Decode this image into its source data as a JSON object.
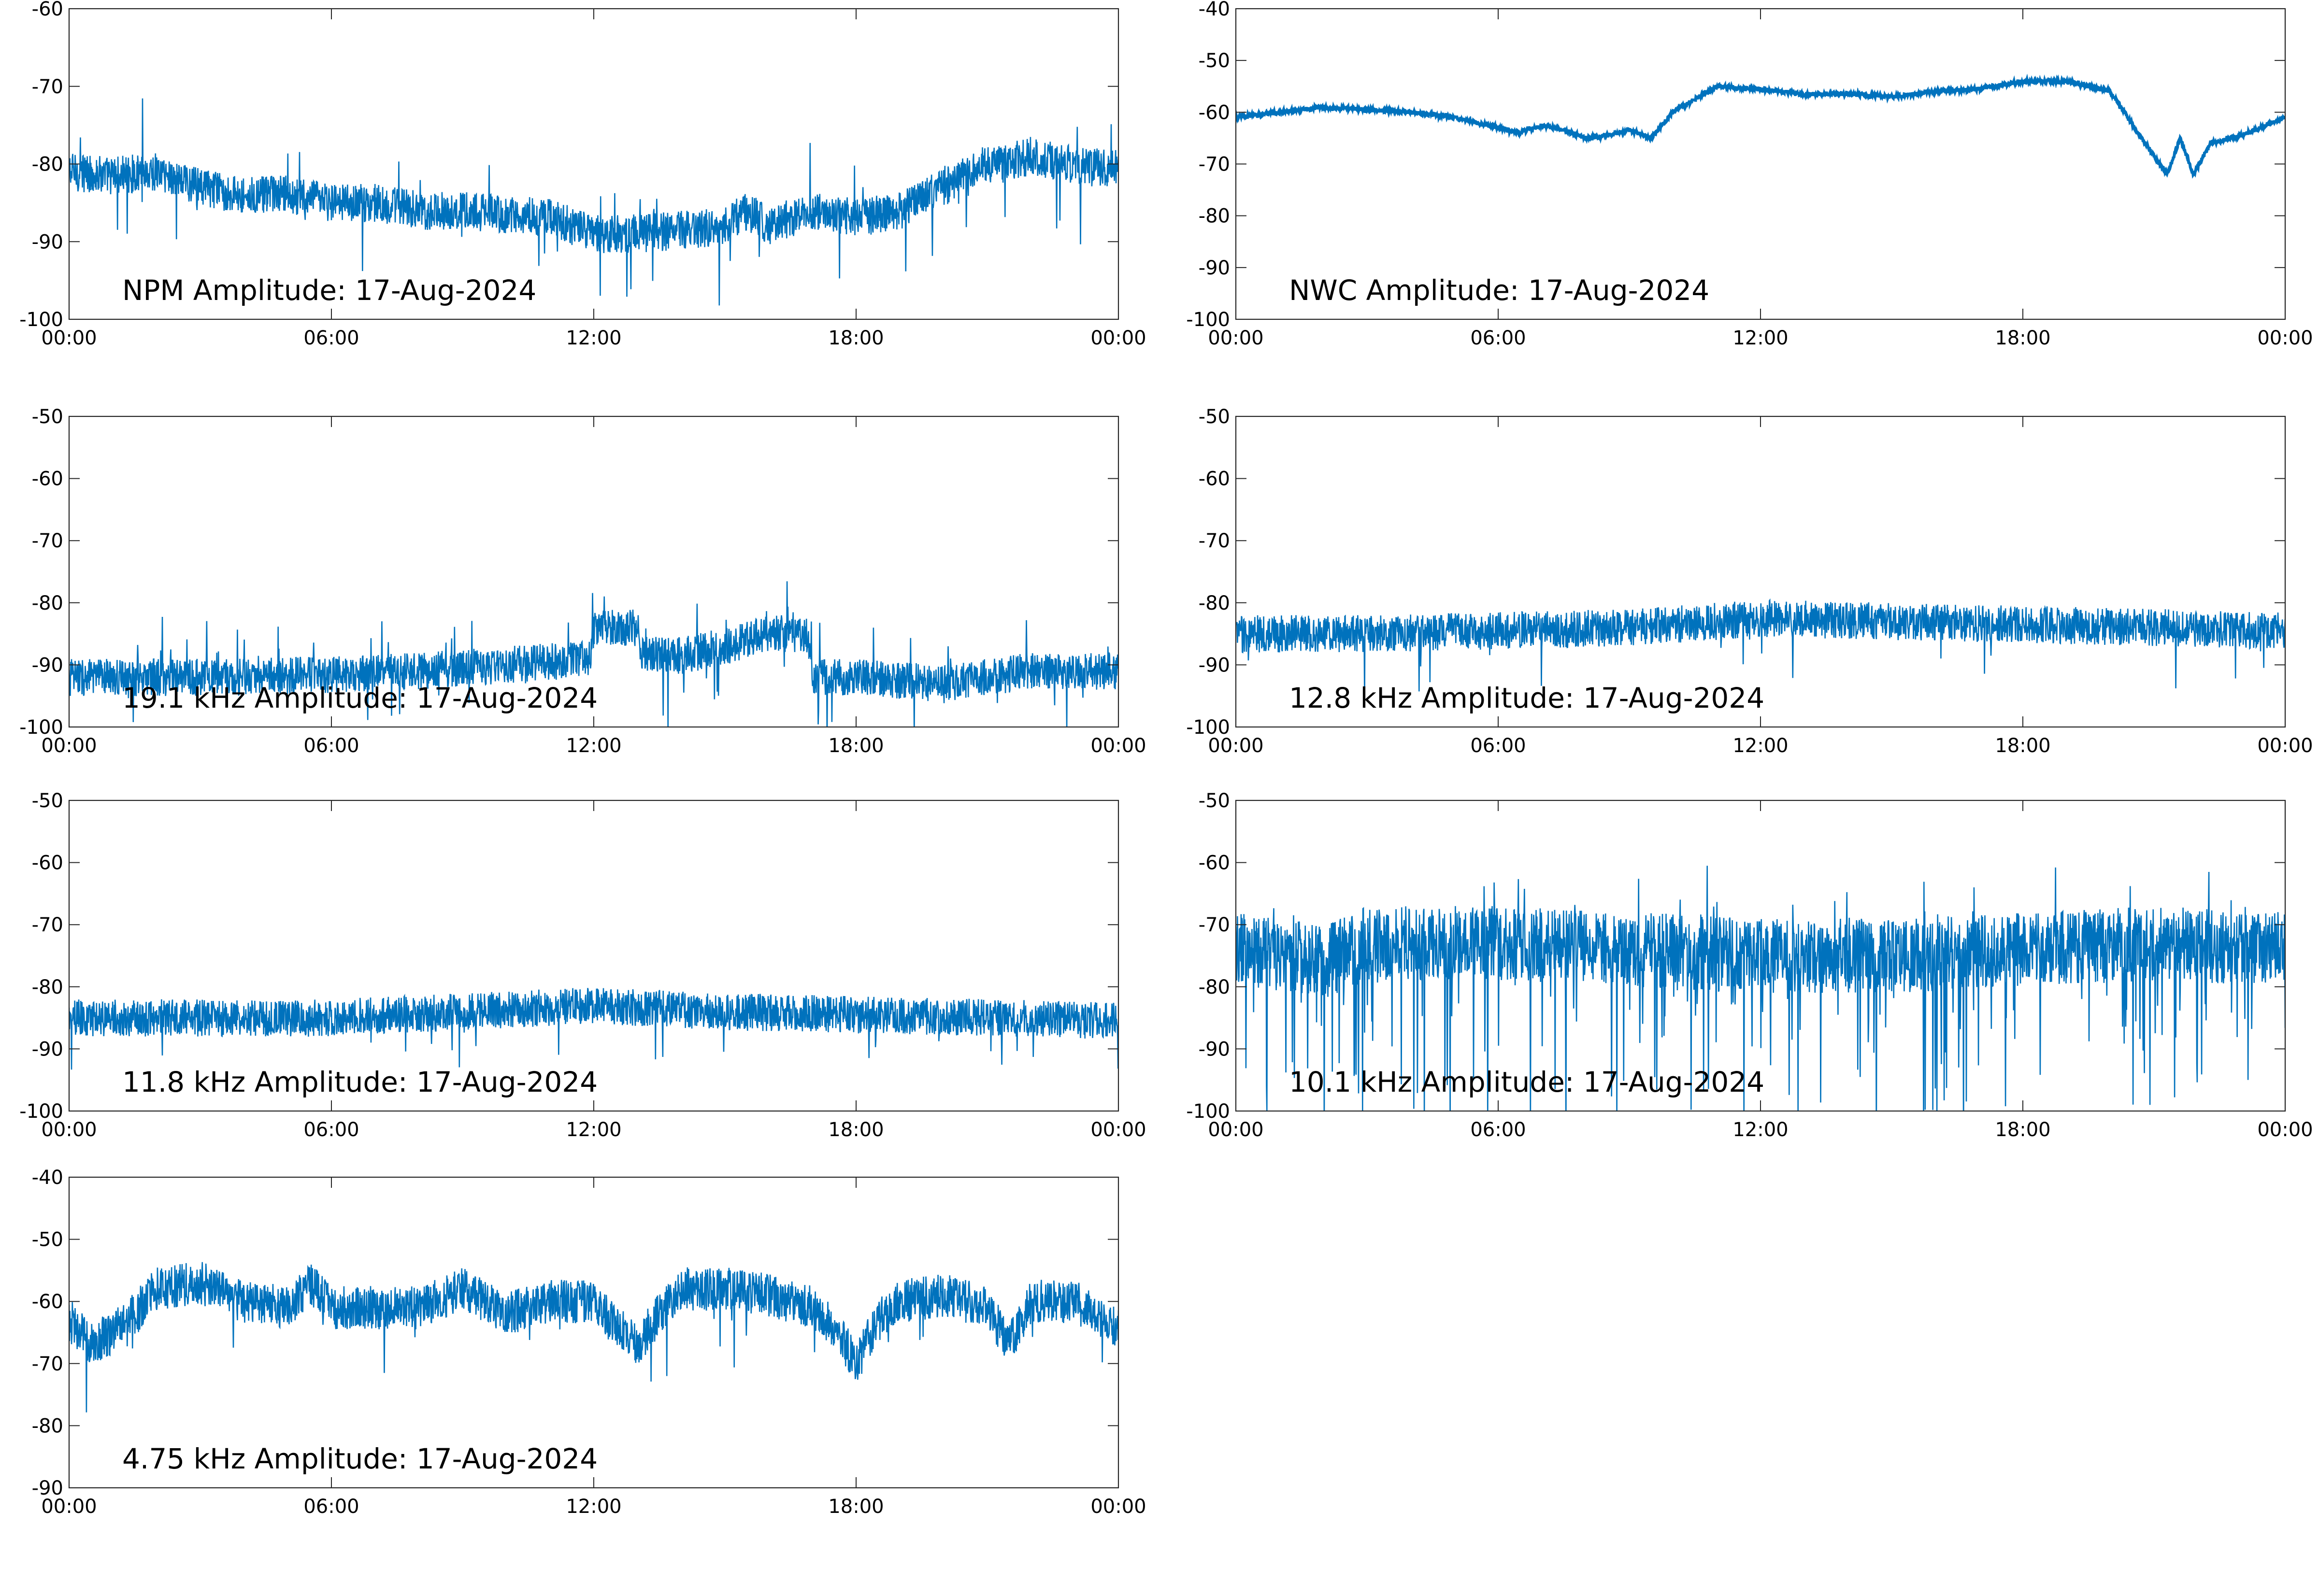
{
  "colors": {
    "line": "#0072bd",
    "axes": "#262626",
    "background": "#ffffff"
  },
  "chart_data": [
    {
      "type": "line",
      "title": "NPM Amplitude: 17-Aug-2024",
      "xlim": [
        "00:00",
        "24:00"
      ],
      "x_ticks": [
        "00:00",
        "06:00",
        "12:00",
        "18:00",
        "00:00"
      ],
      "ylim": [
        -100,
        -60
      ],
      "y_ticks": [
        "-60",
        "-70",
        "-80",
        "-90",
        "-100"
      ],
      "noise": {
        "amplitude": 2.5,
        "spikes": "up_down"
      },
      "series": [
        {
          "x": [
            0,
            1,
            2,
            3,
            4,
            5,
            6,
            7,
            8,
            9,
            10,
            11,
            12,
            13,
            14,
            15,
            15.5,
            16,
            16.5,
            17,
            18,
            19,
            20,
            21,
            22,
            23,
            24
          ],
          "values": [
            -81,
            -81.5,
            -81,
            -83,
            -84,
            -84,
            -85,
            -85,
            -86,
            -86,
            -86.5,
            -87,
            -89,
            -89,
            -88.5,
            -88,
            -86,
            -88,
            -87,
            -86,
            -87,
            -86,
            -83,
            -80,
            -79,
            -80,
            -80.5
          ]
        }
      ]
    },
    {
      "type": "line",
      "title": "NWC Amplitude: 17-Aug-2024",
      "xlim": [
        "00:00",
        "24:00"
      ],
      "x_ticks": [
        "00:00",
        "06:00",
        "12:00",
        "18:00",
        "00:00"
      ],
      "ylim": [
        -100,
        -40
      ],
      "y_ticks": [
        "-40",
        "-50",
        "-60",
        "-70",
        "-80",
        "-90",
        "-100"
      ],
      "noise": {
        "amplitude": 0.4,
        "spikes": "none"
      },
      "series": [
        {
          "x": [
            0,
            1,
            2,
            3,
            4,
            5,
            6,
            6.5,
            7,
            7.5,
            8,
            8.5,
            9,
            9.5,
            10,
            11,
            12,
            13,
            14,
            15,
            16,
            17,
            18,
            19,
            20,
            20.8,
            21.3,
            21.6,
            21.9,
            22.3,
            23,
            24
          ],
          "values": [
            -61,
            -60,
            -59,
            -59.5,
            -60,
            -61,
            -63,
            -64,
            -62.5,
            -63.5,
            -65,
            -64.5,
            -63.5,
            -65,
            -60,
            -55,
            -55.5,
            -56.5,
            -56.5,
            -57,
            -56,
            -55.5,
            -54,
            -54,
            -56,
            -66,
            -72,
            -65,
            -72,
            -66,
            -64.5,
            -61
          ]
        }
      ]
    },
    {
      "type": "line",
      "title": "19.1 kHz Amplitude: 17-Aug-2024",
      "xlim": [
        "00:00",
        "24:00"
      ],
      "x_ticks": [
        "00:00",
        "06:00",
        "12:00",
        "18:00",
        "00:00"
      ],
      "ylim": [
        -100,
        -50
      ],
      "y_ticks": [
        "-50",
        "-60",
        "-70",
        "-80",
        "-90",
        "-100"
      ],
      "noise": {
        "amplitude": 3,
        "spikes": "up_down"
      },
      "series": [
        {
          "x": [
            0,
            2,
            4,
            6,
            8,
            10,
            11.9,
            12,
            13,
            13.1,
            14,
            15,
            16,
            16.9,
            17,
            18,
            20,
            22,
            24
          ],
          "values": [
            -92,
            -92,
            -92,
            -91.5,
            -91,
            -90,
            -89,
            -84,
            -84,
            -88,
            -88.5,
            -87,
            -85,
            -85,
            -92,
            -92,
            -93,
            -91,
            -91
          ]
        }
      ]
    },
    {
      "type": "line",
      "title": "12.8 kHz Amplitude: 17-Aug-2024",
      "xlim": [
        "00:00",
        "24:00"
      ],
      "x_ticks": [
        "00:00",
        "06:00",
        "12:00",
        "18:00",
        "00:00"
      ],
      "ylim": [
        -100,
        -50
      ],
      "y_ticks": [
        "-50",
        "-60",
        "-70",
        "-80",
        "-90",
        "-100"
      ],
      "noise": {
        "amplitude": 3,
        "spikes": "down"
      },
      "series": [
        {
          "x": [
            0,
            3,
            6,
            9,
            12,
            15,
            18,
            21,
            24
          ],
          "values": [
            -85,
            -85,
            -84.5,
            -84,
            -82.5,
            -83,
            -83.5,
            -84,
            -84.5
          ]
        }
      ]
    },
    {
      "type": "line",
      "title": "11.8 kHz Amplitude: 17-Aug-2024",
      "xlim": [
        "00:00",
        "24:00"
      ],
      "x_ticks": [
        "00:00",
        "06:00",
        "12:00",
        "18:00",
        "00:00"
      ],
      "ylim": [
        -100,
        -50
      ],
      "y_ticks": [
        "-50",
        "-60",
        "-70",
        "-80",
        "-90",
        "-100"
      ],
      "noise": {
        "amplitude": 3,
        "spikes": "down"
      },
      "series": [
        {
          "x": [
            0,
            3,
            6,
            9,
            12,
            15,
            18,
            21,
            24
          ],
          "values": [
            -85,
            -85,
            -85,
            -84,
            -83,
            -84,
            -84.5,
            -85,
            -85.5
          ]
        }
      ]
    },
    {
      "type": "line",
      "title": "10.1 kHz Amplitude: 17-Aug-2024",
      "xlim": [
        "00:00",
        "24:00"
      ],
      "x_ticks": [
        "00:00",
        "06:00",
        "12:00",
        "18:00",
        "00:00"
      ],
      "ylim": [
        -100,
        -50
      ],
      "y_ticks": [
        "-50",
        "-60",
        "-70",
        "-80",
        "-90",
        "-100"
      ],
      "noise": {
        "amplitude": 6,
        "spikes": "deep_down"
      },
      "series": [
        {
          "x": [
            0,
            2,
            3,
            6,
            9,
            12,
            15,
            18,
            21,
            24
          ],
          "values": [
            -74,
            -76,
            -73,
            -73,
            -74,
            -75,
            -75,
            -74,
            -73,
            -74
          ]
        }
      ]
    },
    {
      "type": "line",
      "title": "4.75 kHz Amplitude: 17-Aug-2024",
      "xlim": [
        "00:00",
        "24:00"
      ],
      "x_ticks": [
        "00:00",
        "06:00",
        "12:00",
        "18:00",
        "00:00"
      ],
      "ylim": [
        -90,
        -40
      ],
      "y_ticks": [
        "-40",
        "-50",
        "-60",
        "-70",
        "-80",
        "-90"
      ],
      "noise": {
        "amplitude": 3.5,
        "spikes": "down"
      },
      "series": [
        {
          "x": [
            0,
            0.5,
            1,
            1.5,
            2,
            3,
            4,
            5,
            5.5,
            6,
            7,
            8,
            9,
            10,
            11,
            12,
            12.5,
            13,
            13.5,
            14,
            15,
            16,
            17,
            17.5,
            18,
            18.5,
            19,
            20,
            21,
            21.5,
            22,
            23,
            24
          ],
          "values": [
            -63,
            -67,
            -65,
            -62,
            -58,
            -57,
            -60,
            -61,
            -57,
            -61,
            -61,
            -61,
            -58,
            -62,
            -60,
            -60,
            -64,
            -67,
            -62,
            -58,
            -58,
            -59,
            -61,
            -64,
            -70,
            -63,
            -60,
            -59,
            -61,
            -67,
            -60,
            -60,
            -64
          ]
        }
      ]
    }
  ]
}
